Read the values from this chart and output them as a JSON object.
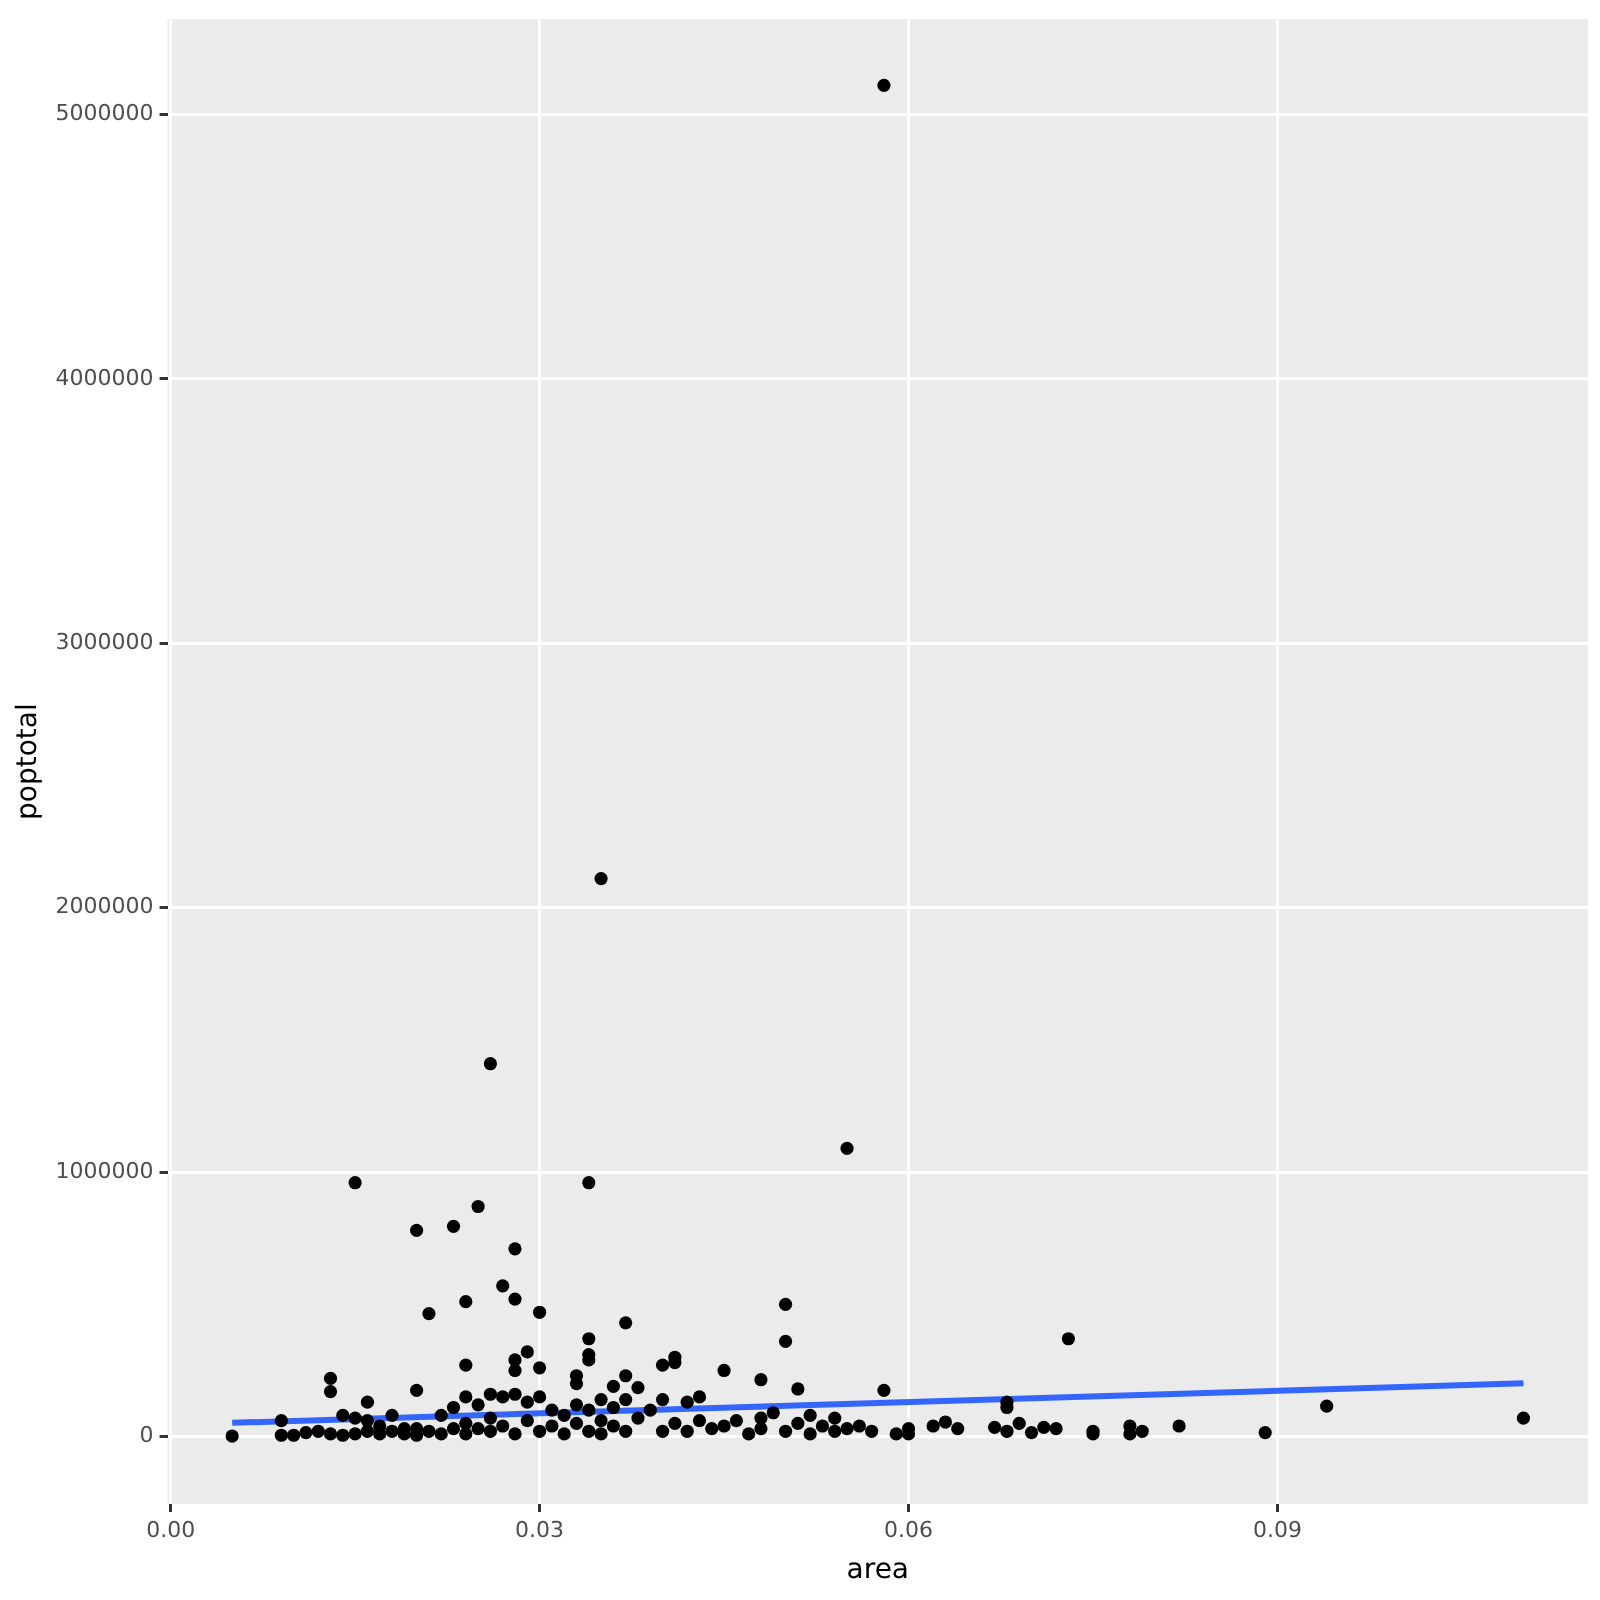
{
  "chart_data": {
    "type": "scatter",
    "xlabel": "area",
    "ylabel": "poptotal",
    "xlim": [
      -0.00025,
      0.11525
    ],
    "ylim": [
      -255000,
      5360000
    ],
    "xticks": [
      {
        "value": 0,
        "label": "0.00"
      },
      {
        "value": 0.03,
        "label": "0.03"
      },
      {
        "value": 0.06,
        "label": "0.06"
      },
      {
        "value": 0.09,
        "label": "0.09"
      }
    ],
    "yticks": [
      0,
      1000000,
      2000000,
      3000000,
      4000000,
      5000000
    ],
    "grid": true,
    "legend": false,
    "series": [
      {
        "marker": "circle",
        "color": "#000000",
        "x": [
          0.058,
          0.035,
          0.026,
          0.055,
          0.015,
          0.034,
          0.025,
          0.02,
          0.023,
          0.028,
          0.027,
          0.024,
          0.028,
          0.03,
          0.021,
          0.037,
          0.05,
          0.05,
          0.073,
          0.034,
          0.034,
          0.034,
          0.029,
          0.028,
          0.028,
          0.03,
          0.041,
          0.041,
          0.04,
          0.045,
          0.024,
          0.013,
          0.013,
          0.02,
          0.033,
          0.033,
          0.037,
          0.036,
          0.038,
          0.048,
          0.051,
          0.058,
          0.094,
          0.11,
          0.068,
          0.068,
          0.005,
          0.06,
          0.06,
          0.062,
          0.063,
          0.064,
          0.067,
          0.068,
          0.069,
          0.07,
          0.071,
          0.072,
          0.075,
          0.075,
          0.078,
          0.078,
          0.079,
          0.082,
          0.089,
          0.057,
          0.059,
          0.055,
          0.054,
          0.009,
          0.009,
          0.01,
          0.011,
          0.012,
          0.013,
          0.014,
          0.014,
          0.015,
          0.015,
          0.016,
          0.016,
          0.016,
          0.017,
          0.017,
          0.018,
          0.018,
          0.019,
          0.019,
          0.02,
          0.02,
          0.021,
          0.022,
          0.022,
          0.023,
          0.023,
          0.024,
          0.024,
          0.024,
          0.025,
          0.025,
          0.026,
          0.026,
          0.026,
          0.027,
          0.027,
          0.028,
          0.028,
          0.029,
          0.029,
          0.03,
          0.03,
          0.031,
          0.031,
          0.032,
          0.032,
          0.033,
          0.033,
          0.034,
          0.034,
          0.035,
          0.035,
          0.035,
          0.036,
          0.036,
          0.037,
          0.037,
          0.038,
          0.039,
          0.04,
          0.04,
          0.041,
          0.042,
          0.042,
          0.043,
          0.043,
          0.044,
          0.045,
          0.046,
          0.047,
          0.048,
          0.048,
          0.049,
          0.05,
          0.051,
          0.052,
          0.052,
          0.053,
          0.054,
          0.056
        ],
        "values": [
          5110000,
          2110000,
          1410000,
          1090000,
          960000,
          960000,
          870000,
          780000,
          795000,
          710000,
          570000,
          510000,
          520000,
          470000,
          465000,
          430000,
          500000,
          360000,
          370000,
          370000,
          310000,
          290000,
          320000,
          290000,
          250000,
          260000,
          300000,
          280000,
          270000,
          250000,
          270000,
          220000,
          170000,
          175000,
          200000,
          230000,
          230000,
          190000,
          185000,
          215000,
          180000,
          175000,
          115000,
          70000,
          130000,
          110000,
          2000,
          30000,
          10000,
          40000,
          55000,
          30000,
          35000,
          20000,
          50000,
          15000,
          35000,
          30000,
          10000,
          20000,
          10000,
          40000,
          20000,
          40000,
          15000,
          20000,
          10000,
          30000,
          70000,
          60000,
          5000,
          5000,
          15000,
          20000,
          10000,
          5000,
          80000,
          10000,
          70000,
          130000,
          60000,
          20000,
          10000,
          40000,
          80000,
          20000,
          10000,
          30000,
          5000,
          30000,
          20000,
          80000,
          10000,
          30000,
          110000,
          150000,
          50000,
          10000,
          120000,
          30000,
          160000,
          70000,
          20000,
          40000,
          150000,
          160000,
          10000,
          130000,
          60000,
          150000,
          20000,
          100000,
          40000,
          80000,
          10000,
          120000,
          50000,
          100000,
          20000,
          140000,
          60000,
          10000,
          110000,
          40000,
          140000,
          20000,
          70000,
          100000,
          140000,
          20000,
          50000,
          130000,
          20000,
          150000,
          60000,
          30000,
          40000,
          60000,
          10000,
          70000,
          30000,
          90000,
          20000,
          50000,
          80000,
          10000,
          40000,
          20000,
          40000
        ]
      },
      {
        "type": "line",
        "marker": "none",
        "color": "#3366ff",
        "x": [
          0.005,
          0.11
        ],
        "values": [
          52000,
          202000
        ]
      }
    ]
  }
}
